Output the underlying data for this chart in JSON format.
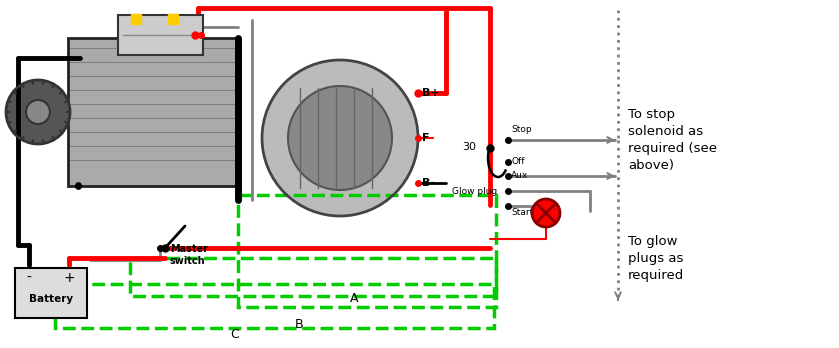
{
  "bg_color": "#ffffff",
  "red": "#ff0000",
  "black": "#000000",
  "gray": "#808080",
  "green": "#00cc00",
  "labels": {
    "battery": "Battery",
    "master_switch": "Master\nswitch",
    "A": "A",
    "B": "B",
    "C": "C",
    "B_plus": "B+",
    "F": "F",
    "B_minus": "B-",
    "label_30": "30",
    "Stop": "Stop",
    "Off": "Off",
    "Aux": "Aux",
    "Glow_plug": "Glow plug",
    "Start": "Start",
    "to_stop": "To stop\nsolenoid as\nrequired (see\nabove)",
    "to_glow": "To glow\nplugs as\nrequired"
  }
}
